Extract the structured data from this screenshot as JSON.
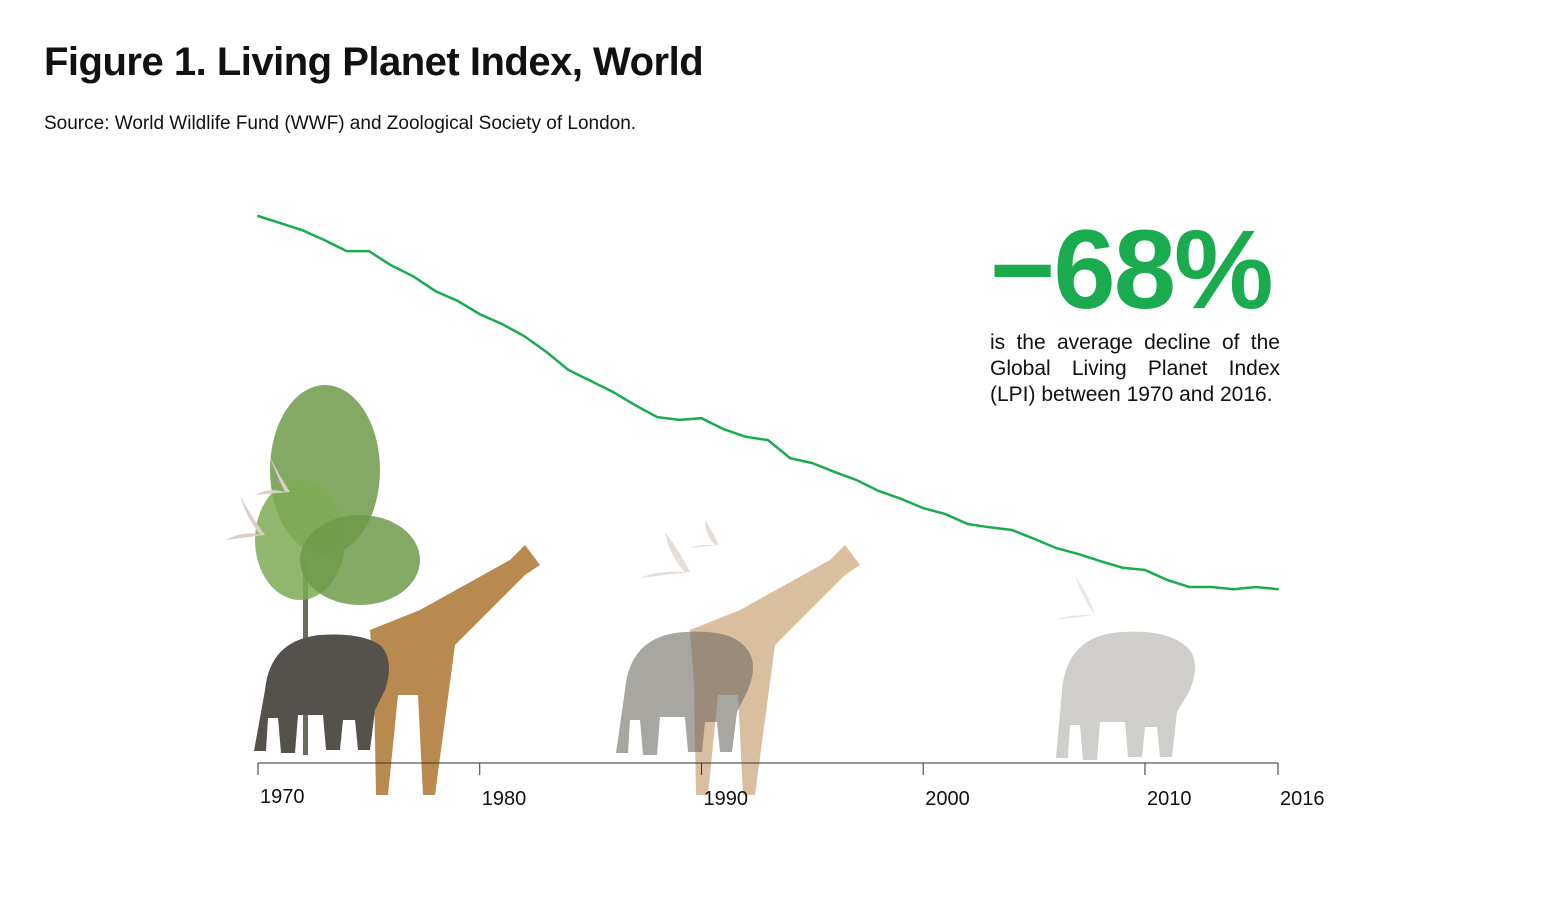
{
  "chart_data": {
    "type": "line",
    "title": "Figure 1. Living Planet Index, World",
    "subtitle": "Source: World Wildlife Fund (WWF) and Zoological Society of London.",
    "xlabel": "",
    "ylabel": "",
    "xlim": [
      1970,
      2016
    ],
    "ylim": [
      0,
      1
    ],
    "grid": false,
    "x_ticks": [
      "1970",
      "1980",
      "1990",
      "2000",
      "2010",
      "2016"
    ],
    "series": [
      {
        "name": "Living Planet Index",
        "color": "#1aab4f",
        "x": [
          1970,
          1971,
          1972,
          1973,
          1974,
          1975,
          1976,
          1977,
          1978,
          1979,
          1980,
          1981,
          1982,
          1983,
          1984,
          1985,
          1986,
          1987,
          1988,
          1989,
          1990,
          1991,
          1992,
          1993,
          1994,
          1995,
          1996,
          1997,
          1998,
          1999,
          2000,
          2001,
          2002,
          2003,
          2004,
          2005,
          2006,
          2007,
          2008,
          2009,
          2010,
          2011,
          2012,
          2013,
          2014,
          2015,
          2016
        ],
        "values": [
          1.0,
          0.987,
          0.974,
          0.956,
          0.936,
          0.936,
          0.91,
          0.89,
          0.863,
          0.845,
          0.821,
          0.803,
          0.781,
          0.752,
          0.719,
          0.699,
          0.679,
          0.655,
          0.633,
          0.628,
          0.631,
          0.611,
          0.597,
          0.591,
          0.558,
          0.549,
          0.533,
          0.518,
          0.498,
          0.484,
          0.467,
          0.456,
          0.438,
          0.432,
          0.427,
          0.411,
          0.394,
          0.383,
          0.37,
          0.358,
          0.354,
          0.336,
          0.323,
          0.323,
          0.319,
          0.323,
          0.319
        ]
      }
    ],
    "annotation": {
      "headline": "−68%",
      "text": "is the average decline of the Global Living Planet Index (LPI) between 1970 and 2016."
    }
  }
}
